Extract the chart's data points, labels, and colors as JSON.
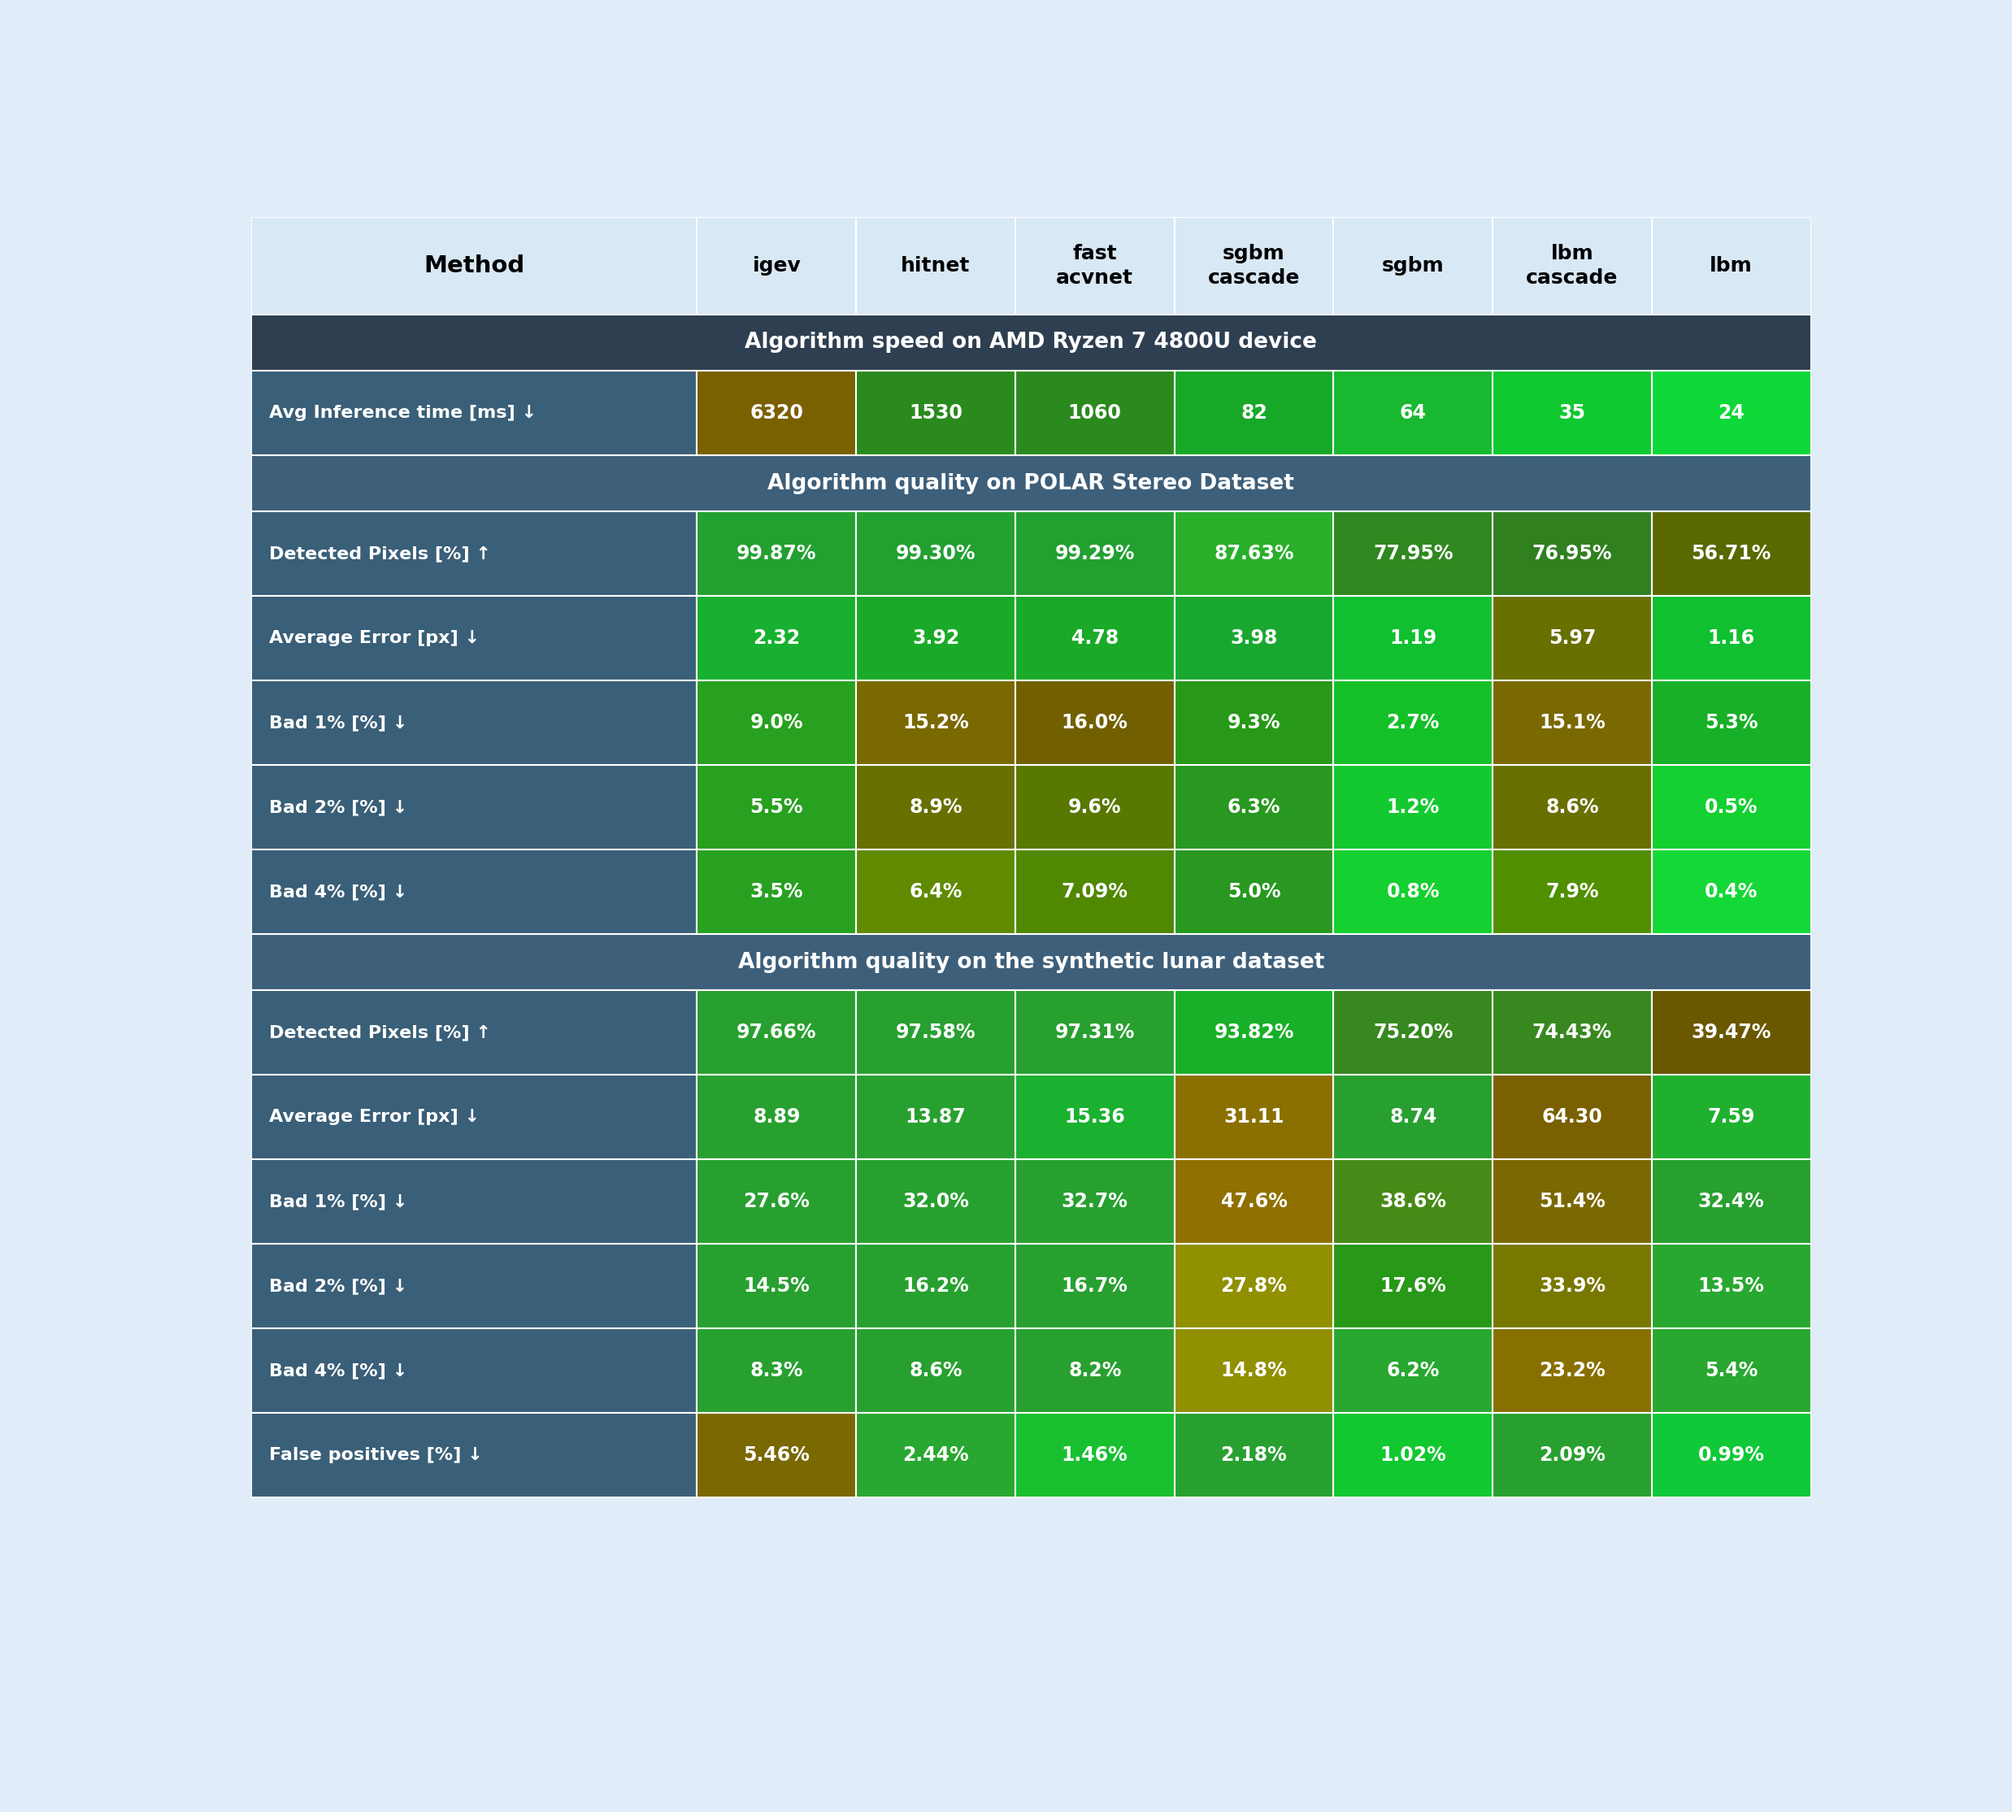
{
  "header_bg": "#d8e8f5",
  "header_text_color": "#000000",
  "fig_bg": "#e0ecf8",
  "row_label_bg": "#3a5f78",
  "row_label_text": "#ffffff",
  "columns": [
    "Method",
    "igev",
    "hitnet",
    "fast\nacvnet",
    "sgbm\ncascade",
    "sgbm",
    "lbm\ncascade",
    "lbm"
  ],
  "col_widths": [
    2.8,
    1.0,
    1.0,
    1.0,
    1.0,
    1.0,
    1.0,
    1.0
  ],
  "sections": [
    {
      "title": "Algorithm speed on AMD Ryzen 7 4800U device",
      "title_bg": "#2d3f50",
      "rows": [
        {
          "label": "Avg Inference time [ms] ↓",
          "values": [
            "6320",
            "1530",
            "1060",
            "82",
            "64",
            "35",
            "24"
          ],
          "colors": [
            "#7a6000",
            "#2a8a1e",
            "#2a8a1e",
            "#18a828",
            "#18b830",
            "#10c830",
            "#0ed838"
          ]
        }
      ]
    },
    {
      "title": "Algorithm quality on POLAR Stereo Dataset",
      "title_bg": "#3d5f7a",
      "rows": [
        {
          "label": "Detected Pixels [%] ↑",
          "values": [
            "99.87%",
            "99.30%",
            "99.29%",
            "87.63%",
            "77.95%",
            "76.95%",
            "56.71%"
          ],
          "colors": [
            "#22a030",
            "#22a030",
            "#22a030",
            "#28b02a",
            "#308820",
            "#308020",
            "#5a6800"
          ]
        },
        {
          "label": "Average Error [px] ↓",
          "values": [
            "2.32",
            "3.92",
            "4.78",
            "3.98",
            "1.19",
            "5.97",
            "1.16"
          ],
          "colors": [
            "#18b030",
            "#1aaa28",
            "#1aaa28",
            "#18a830",
            "#10c030",
            "#687000",
            "#10c030"
          ]
        },
        {
          "label": "Bad 1% [%] ↓",
          "values": [
            "9.0%",
            "15.2%",
            "16.0%",
            "9.3%",
            "2.7%",
            "15.1%",
            "5.3%"
          ],
          "colors": [
            "#28a020",
            "#7a6800",
            "#726000",
            "#289818",
            "#14c028",
            "#7a6800",
            "#18b028"
          ]
        },
        {
          "label": "Bad 2% [%] ↓",
          "values": [
            "5.5%",
            "8.9%",
            "9.6%",
            "6.3%",
            "1.2%",
            "8.6%",
            "0.5%"
          ],
          "colors": [
            "#28a020",
            "#687000",
            "#587800",
            "#289820",
            "#14c830",
            "#687000",
            "#14d030"
          ]
        },
        {
          "label": "Bad 4% [%] ↓",
          "values": [
            "3.5%",
            "6.4%",
            "7.09%",
            "5.0%",
            "0.8%",
            "7.9%",
            "0.4%"
          ],
          "colors": [
            "#28a020",
            "#608a00",
            "#508800",
            "#289820",
            "#14d030",
            "#509000",
            "#14d838"
          ]
        }
      ]
    },
    {
      "title": "Algorithm quality on the synthetic lunar dataset",
      "title_bg": "#3d5f7a",
      "rows": [
        {
          "label": "Detected Pixels [%] ↑",
          "values": [
            "97.66%",
            "97.58%",
            "97.31%",
            "93.82%",
            "75.20%",
            "74.43%",
            "39.47%"
          ],
          "colors": [
            "#28a030",
            "#28a030",
            "#28a030",
            "#18b028",
            "#388820",
            "#388820",
            "#6a5800"
          ]
        },
        {
          "label": "Average Error [px] ↓",
          "values": [
            "8.89",
            "13.87",
            "15.36",
            "31.11",
            "8.74",
            "64.30",
            "7.59"
          ],
          "colors": [
            "#28a030",
            "#28a030",
            "#1ab030",
            "#8a7000",
            "#28a030",
            "#7a6000",
            "#20b030"
          ]
        },
        {
          "label": "Bad 1% [%] ↓",
          "values": [
            "27.6%",
            "32.0%",
            "32.7%",
            "47.6%",
            "38.6%",
            "51.4%",
            "32.4%"
          ],
          "colors": [
            "#28a030",
            "#28a030",
            "#28a030",
            "#907000",
            "#488a18",
            "#7a6800",
            "#28a030"
          ]
        },
        {
          "label": "Bad 2% [%] ↓",
          "values": [
            "14.5%",
            "16.2%",
            "16.7%",
            "27.8%",
            "17.6%",
            "33.9%",
            "13.5%"
          ],
          "colors": [
            "#28a030",
            "#28a030",
            "#28a030",
            "#909000",
            "#289818",
            "#787800",
            "#28a830"
          ]
        },
        {
          "label": "Bad 4% [%] ↓",
          "values": [
            "8.3%",
            "8.6%",
            "8.2%",
            "14.8%",
            "6.2%",
            "23.2%",
            "5.4%"
          ],
          "colors": [
            "#28a030",
            "#28a030",
            "#28a030",
            "#909000",
            "#28a830",
            "#887000",
            "#28a830"
          ]
        },
        {
          "label": "False positives [%] ↓",
          "values": [
            "5.46%",
            "2.44%",
            "1.46%",
            "2.18%",
            "1.02%",
            "2.09%",
            "0.99%"
          ],
          "colors": [
            "#7a6800",
            "#28a830",
            "#18c030",
            "#28a030",
            "#12c830",
            "#28a030",
            "#10c838"
          ]
        }
      ]
    }
  ]
}
